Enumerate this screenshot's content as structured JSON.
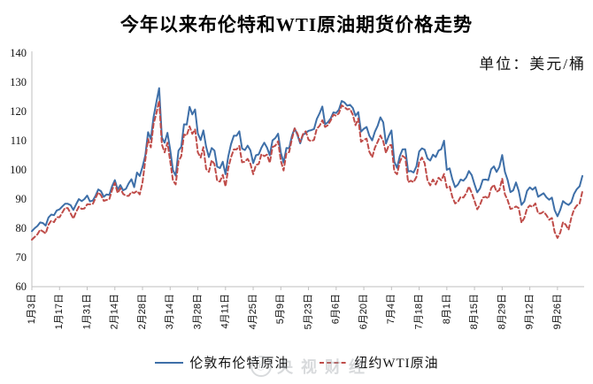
{
  "title": "今年以来布伦特和WTI原油期货价格走势",
  "unit_label": "单位：美元/桶",
  "watermark": {
    "logo_glyph": "@",
    "text": "央视财经"
  },
  "colors": {
    "brent_blue": "#3e6fa8",
    "wti_red": "#bf4c49",
    "axis_gray": "#bfbfbf",
    "text_black": "#111111"
  },
  "legend": [
    {
      "label": "伦敦布伦特原油",
      "color": "#3e6fa8",
      "dash": ""
    },
    {
      "label": "纽约WTI原油",
      "color": "#bf4c49",
      "dash": "5,3.2"
    }
  ],
  "chart_data": {
    "type": "line",
    "title": "今年以来布伦特和WTI原油期货价格走势",
    "ylabel": "美元/桶",
    "ylim": [
      60,
      140
    ],
    "ytick_step": 10,
    "grid": false,
    "legend_position": "bottom",
    "x_tick_labels": [
      "1月3日",
      "1月17日",
      "1月31日",
      "2月14日",
      "2月28日",
      "3月14日",
      "3月28日",
      "4月11日",
      "4月25日",
      "5月9日",
      "5月23日",
      "6月6日",
      "6月20日",
      "7月4日",
      "7月18日",
      "8月1日",
      "8月15日",
      "8月29日",
      "9月12日",
      "9月26日"
    ],
    "x_tick_index_step": 10,
    "series": [
      {
        "name": "伦敦布伦特原油",
        "color": "#3e6fa8",
        "style": "solid",
        "values": [
          79.0,
          80.0,
          80.8,
          82.0,
          81.8,
          80.9,
          83.7,
          84.7,
          84.5,
          86.1,
          86.5,
          87.5,
          88.4,
          88.4,
          87.9,
          86.3,
          88.2,
          90.0,
          89.3,
          90.0,
          91.2,
          89.2,
          89.5,
          91.1,
          93.3,
          92.7,
          90.8,
          91.6,
          91.4,
          94.4,
          96.5,
          93.3,
          94.8,
          93.0,
          93.5,
          95.4,
          96.8,
          94.1,
          99.1,
          97.9,
          101.0,
          105.0,
          112.9,
          110.5,
          118.1,
          123.2,
          128.0,
          111.1,
          109.3,
          112.7,
          106.9,
          99.9,
          98.0,
          106.6,
          107.9,
          115.6,
          115.5,
          121.6,
          119.0,
          120.7,
          112.5,
          110.2,
          113.5,
          107.9,
          104.4,
          107.5,
          106.6,
          101.1,
          100.6,
          102.8,
          98.5,
          104.6,
          108.8,
          111.7,
          111.7,
          113.2,
          107.3,
          106.8,
          108.3,
          106.7,
          102.3,
          105.0,
          105.3,
          107.6,
          109.3,
          107.6,
          105.0,
          110.1,
          110.9,
          112.4,
          105.9,
          102.5,
          107.5,
          107.4,
          111.6,
          114.2,
          111.9,
          109.1,
          112.0,
          112.6,
          113.4,
          113.6,
          114.0,
          117.4,
          119.4,
          121.7,
          115.6,
          116.3,
          117.6,
          119.7,
          119.5,
          120.6,
          123.6,
          123.1,
          122.0,
          122.3,
          121.2,
          118.5,
          119.8,
          113.1,
          114.1,
          114.7,
          111.7,
          110.1,
          113.1,
          115.1,
          118.0,
          116.3,
          109.0,
          111.6,
          113.5,
          102.8,
          100.7,
          104.7,
          107.0,
          107.1,
          99.5,
          99.6,
          99.1,
          101.2,
          106.3,
          107.4,
          106.9,
          103.9,
          103.2,
          105.2,
          104.4,
          106.6,
          107.1,
          110.0,
          100.0,
          100.5,
          96.8,
          94.1,
          94.9,
          96.7,
          96.3,
          97.4,
          99.6,
          98.2,
          95.1,
          92.3,
          93.7,
          96.6,
          96.7,
          96.5,
          100.2,
          101.2,
          99.3,
          101.0,
          105.1,
          99.3,
          96.5,
          92.4,
          93.0,
          95.7,
          92.8,
          88.0,
          89.2,
          92.8,
          94.0,
          93.2,
          94.1,
          90.8,
          91.4,
          92.0,
          90.6,
          89.8,
          90.5,
          86.2,
          84.1,
          86.3,
          89.3,
          88.5,
          88.0,
          88.9,
          91.8,
          93.4,
          94.4,
          97.9
        ]
      },
      {
        "name": "纽约WTI原油",
        "color": "#bf4c49",
        "style": "dashed",
        "values": [
          76.1,
          77.0,
          77.9,
          79.5,
          78.9,
          78.2,
          81.2,
          82.6,
          82.1,
          83.8,
          83.8,
          85.4,
          87.0,
          86.9,
          85.1,
          83.3,
          85.6,
          87.4,
          86.6,
          86.8,
          88.2,
          88.2,
          88.3,
          90.3,
          92.3,
          91.3,
          89.4,
          89.7,
          89.9,
          93.1,
          95.5,
          92.1,
          93.7,
          91.8,
          91.1,
          91.1,
          92.4,
          92.1,
          92.8,
          91.6,
          95.7,
          103.4,
          110.6,
          107.7,
          115.7,
          119.4,
          123.7,
          108.7,
          106.0,
          109.3,
          103.0,
          96.4,
          95.0,
          103.0,
          104.7,
          112.1,
          111.8,
          114.9,
          112.3,
          113.9,
          106.0,
          104.2,
          107.8,
          100.3,
          99.3,
          103.3,
          102.0,
          96.2,
          96.0,
          98.3,
          94.3,
          100.6,
          104.3,
          107.0,
          107.0,
          108.2,
          102.6,
          102.8,
          103.8,
          102.1,
          98.5,
          101.7,
          102.0,
          105.4,
          104.7,
          105.2,
          102.4,
          107.8,
          108.3,
          109.8,
          103.1,
          99.8,
          105.7,
          106.1,
          110.5,
          114.2,
          112.4,
          109.6,
          112.2,
          113.2,
          110.3,
          109.8,
          110.3,
          114.1,
          115.1,
          117.0,
          114.7,
          115.3,
          116.9,
          118.9,
          118.5,
          119.4,
          122.1,
          121.5,
          120.7,
          120.9,
          118.9,
          115.3,
          117.6,
          109.6,
          110.3,
          110.7,
          106.2,
          104.3,
          107.6,
          109.6,
          111.8,
          109.8,
          105.8,
          108.4,
          108.5,
          99.5,
          98.5,
          102.7,
          104.8,
          104.1,
          95.8,
          96.3,
          95.8,
          97.6,
          102.6,
          104.2,
          102.3,
          96.4,
          94.7,
          96.7,
          95.0,
          97.3,
          96.4,
          98.6,
          93.9,
          94.4,
          90.7,
          88.5,
          89.0,
          90.8,
          90.5,
          91.9,
          94.3,
          92.1,
          89.4,
          86.5,
          88.1,
          90.5,
          90.8,
          90.2,
          93.7,
          94.9,
          92.5,
          93.1,
          97.0,
          91.6,
          89.6,
          86.6,
          86.9,
          87.5,
          86.9,
          81.9,
          83.5,
          86.8,
          87.8,
          87.3,
          88.5,
          85.1,
          85.1,
          85.7,
          84.5,
          82.9,
          83.5,
          78.7,
          76.7,
          78.5,
          82.1,
          81.2,
          79.5,
          83.6,
          86.5,
          87.8,
          88.5,
          92.6
        ]
      }
    ]
  }
}
